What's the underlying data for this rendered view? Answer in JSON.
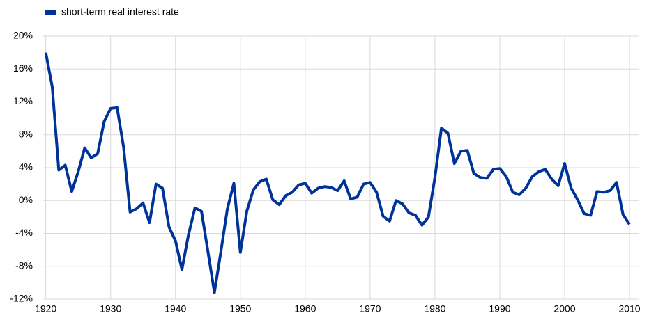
{
  "chart_data": {
    "type": "line",
    "legend_position": "top-left",
    "grid": true,
    "x": [
      1920,
      1921,
      1922,
      1923,
      1924,
      1925,
      1926,
      1927,
      1928,
      1929,
      1930,
      1931,
      1932,
      1933,
      1934,
      1935,
      1936,
      1937,
      1938,
      1939,
      1940,
      1941,
      1942,
      1943,
      1944,
      1945,
      1946,
      1947,
      1948,
      1949,
      1950,
      1951,
      1952,
      1953,
      1954,
      1955,
      1956,
      1957,
      1958,
      1959,
      1960,
      1961,
      1962,
      1963,
      1964,
      1965,
      1966,
      1967,
      1968,
      1969,
      1970,
      1971,
      1972,
      1973,
      1974,
      1975,
      1976,
      1977,
      1978,
      1979,
      1980,
      1981,
      1982,
      1983,
      1984,
      1985,
      1986,
      1987,
      1988,
      1989,
      1990,
      1991,
      1992,
      1993,
      1994,
      1995,
      1996,
      1997,
      1998,
      1999,
      2000,
      2001,
      2002,
      2003,
      2004,
      2005,
      2006,
      2007,
      2008,
      2009,
      2010
    ],
    "series": [
      {
        "name": "short-term real interest rate",
        "color": "#003399",
        "values": [
          18,
          13.8,
          3.7,
          4.3,
          1.1,
          3.5,
          6.4,
          5.2,
          5.7,
          9.6,
          11.2,
          11.3,
          6.5,
          -1.4,
          -1.0,
          -0.3,
          -2.7,
          2.0,
          1.5,
          -3.2,
          -4.9,
          -8.4,
          -4.2,
          -0.9,
          -1.3,
          -6.2,
          -11.2,
          -6.2,
          -1.0,
          2.1,
          -6.3,
          -1.3,
          1.3,
          2.3,
          2.6,
          0.1,
          -0.5,
          0.6,
          1.0,
          1.9,
          2.1,
          0.9,
          1.5,
          1.7,
          1.6,
          1.2,
          2.4,
          0.2,
          0.4,
          2.0,
          2.2,
          1.0,
          -1.9,
          -2.5,
          0.0,
          -0.4,
          -1.5,
          -1.8,
          -3.0,
          -2.0,
          2.8,
          8.8,
          8.2,
          4.5,
          6.0,
          6.1,
          3.3,
          2.8,
          2.7,
          3.8,
          3.9,
          2.9,
          1.0,
          0.7,
          1.5,
          2.9,
          3.5,
          3.8,
          2.6,
          1.8,
          4.5,
          1.5,
          0.1,
          -1.6,
          -1.8,
          1.1,
          1.0,
          1.2,
          2.2,
          -1.7,
          -2.9
        ]
      }
    ],
    "xlim": [
      1919.5,
      2011.5
    ],
    "xticks": [
      1920,
      1930,
      1940,
      1950,
      1960,
      1970,
      1980,
      1990,
      2000,
      2010
    ],
    "ylim": [
      -12,
      20
    ],
    "yticks": [
      {
        "value": -12,
        "label": "-12%"
      },
      {
        "value": -8,
        "label": "-8%"
      },
      {
        "value": -4,
        "label": "-4%"
      },
      {
        "value": 0,
        "label": "0%"
      },
      {
        "value": 4,
        "label": "4%"
      },
      {
        "value": 8,
        "label": "8%"
      },
      {
        "value": 12,
        "label": "12%"
      },
      {
        "value": 16,
        "label": "16%"
      },
      {
        "value": 20,
        "label": "20%"
      }
    ]
  }
}
